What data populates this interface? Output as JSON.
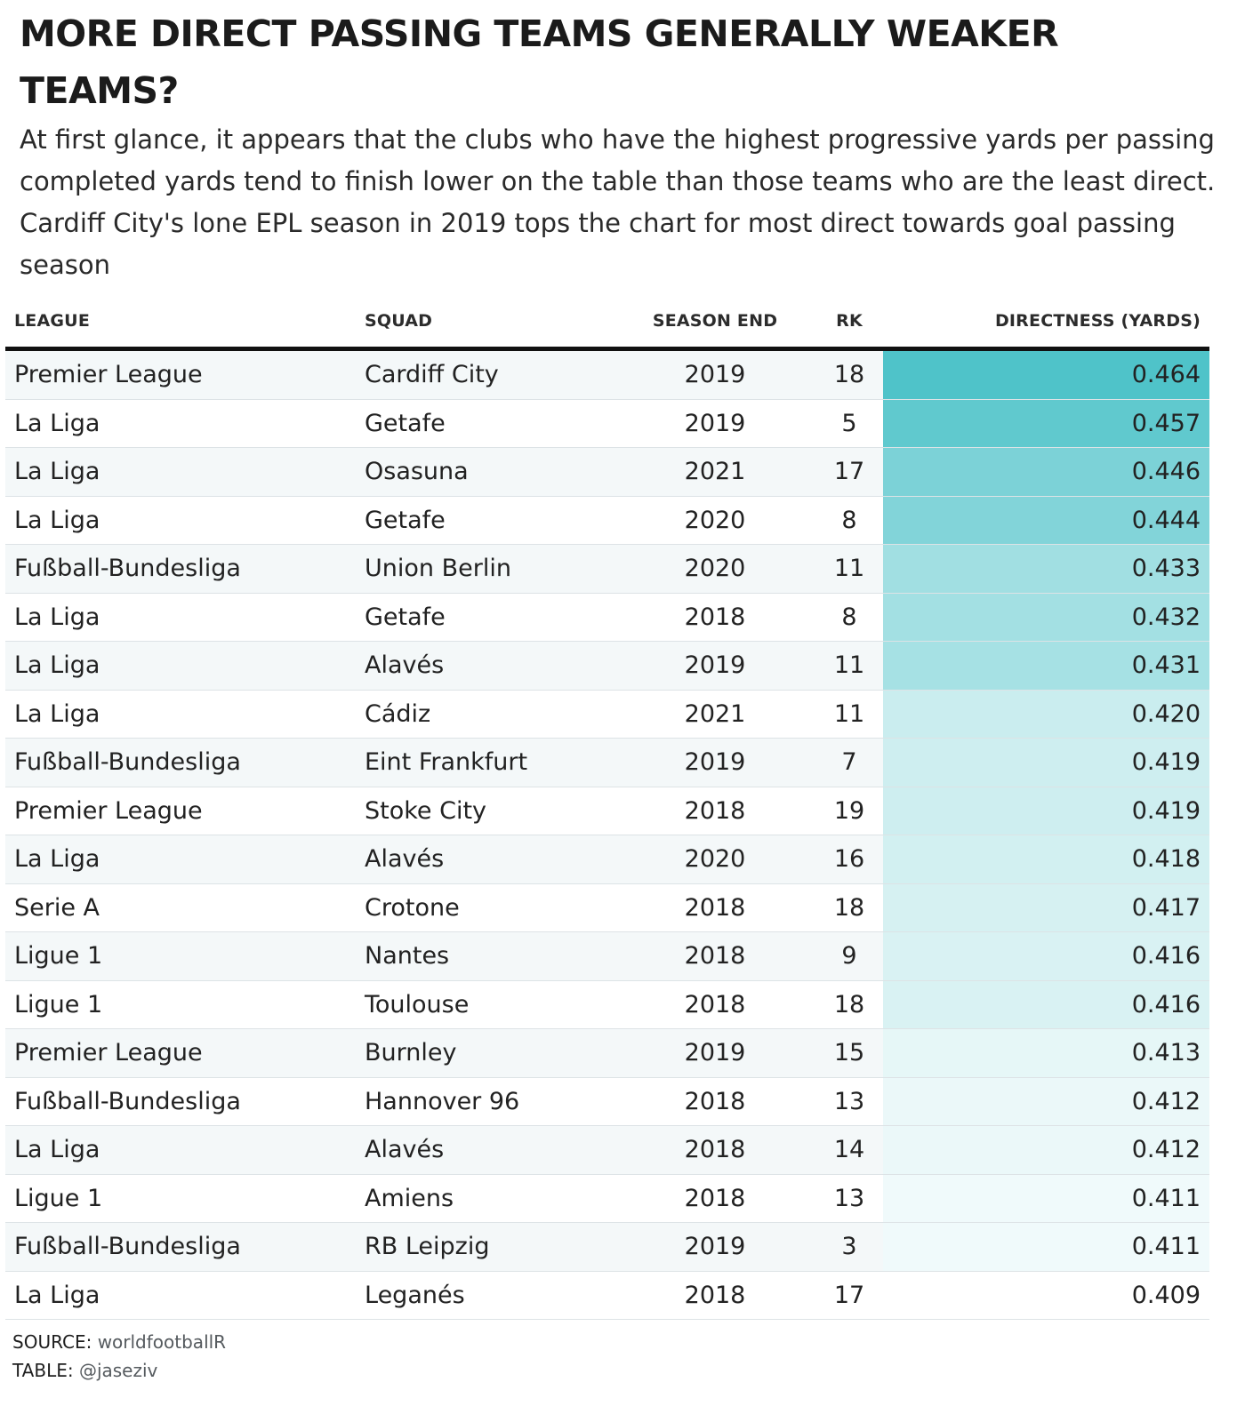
{
  "title": "MORE DIRECT PASSING TEAMS GENERALLY WEAKER TEAMS?",
  "subtitle": "At first glance, it appears that the clubs who have the highest progressive yards per passing completed yards tend to finish lower on the table than those teams who are the least direct. Cardiff City's lone EPL season in 2019 tops the chart for most direct towards goal passing season",
  "columns": {
    "league": "LEAGUE",
    "squad": "SQUAD",
    "season_end": "SEASON END",
    "rk": "RK",
    "directness": "DIRECTNESS (YARDS)"
  },
  "footer": {
    "source_label": "SOURCE:",
    "source_value": "worldfootballR",
    "table_label": "TABLE:",
    "table_value": "@jaseziv"
  },
  "colors": {
    "heat_high": "#4fc3c9",
    "heat_low": "#ffffff",
    "row_stripe": "#f4f8f9",
    "header_rule": "#111111"
  },
  "chart_data": {
    "type": "table",
    "rows": [
      {
        "league": "Premier League",
        "squad": "Cardiff City",
        "season_end": "2019",
        "rk": "18",
        "directness": "0.464"
      },
      {
        "league": "La Liga",
        "squad": "Getafe",
        "season_end": "2019",
        "rk": "5",
        "directness": "0.457"
      },
      {
        "league": "La Liga",
        "squad": "Osasuna",
        "season_end": "2021",
        "rk": "17",
        "directness": "0.446"
      },
      {
        "league": "La Liga",
        "squad": "Getafe",
        "season_end": "2020",
        "rk": "8",
        "directness": "0.444"
      },
      {
        "league": "Fußball-Bundesliga",
        "squad": "Union Berlin",
        "season_end": "2020",
        "rk": "11",
        "directness": "0.433"
      },
      {
        "league": "La Liga",
        "squad": "Getafe",
        "season_end": "2018",
        "rk": "8",
        "directness": "0.432"
      },
      {
        "league": "La Liga",
        "squad": "Alavés",
        "season_end": "2019",
        "rk": "11",
        "directness": "0.431"
      },
      {
        "league": "La Liga",
        "squad": "Cádiz",
        "season_end": "2021",
        "rk": "11",
        "directness": "0.420"
      },
      {
        "league": "Fußball-Bundesliga",
        "squad": "Eint Frankfurt",
        "season_end": "2019",
        "rk": "7",
        "directness": "0.419"
      },
      {
        "league": "Premier League",
        "squad": "Stoke City",
        "season_end": "2018",
        "rk": "19",
        "directness": "0.419"
      },
      {
        "league": "La Liga",
        "squad": "Alavés",
        "season_end": "2020",
        "rk": "16",
        "directness": "0.418"
      },
      {
        "league": "Serie A",
        "squad": "Crotone",
        "season_end": "2018",
        "rk": "18",
        "directness": "0.417"
      },
      {
        "league": "Ligue 1",
        "squad": "Nantes",
        "season_end": "2018",
        "rk": "9",
        "directness": "0.416"
      },
      {
        "league": "Ligue 1",
        "squad": "Toulouse",
        "season_end": "2018",
        "rk": "18",
        "directness": "0.416"
      },
      {
        "league": "Premier League",
        "squad": "Burnley",
        "season_end": "2019",
        "rk": "15",
        "directness": "0.413"
      },
      {
        "league": "Fußball-Bundesliga",
        "squad": "Hannover 96",
        "season_end": "2018",
        "rk": "13",
        "directness": "0.412"
      },
      {
        "league": "La Liga",
        "squad": "Alavés",
        "season_end": "2018",
        "rk": "14",
        "directness": "0.412"
      },
      {
        "league": "Ligue 1",
        "squad": "Amiens",
        "season_end": "2018",
        "rk": "13",
        "directness": "0.411"
      },
      {
        "league": "Fußball-Bundesliga",
        "squad": "RB Leipzig",
        "season_end": "2019",
        "rk": "3",
        "directness": "0.411"
      },
      {
        "league": "La Liga",
        "squad": "Leganés",
        "season_end": "2018",
        "rk": "17",
        "directness": "0.409"
      }
    ]
  }
}
